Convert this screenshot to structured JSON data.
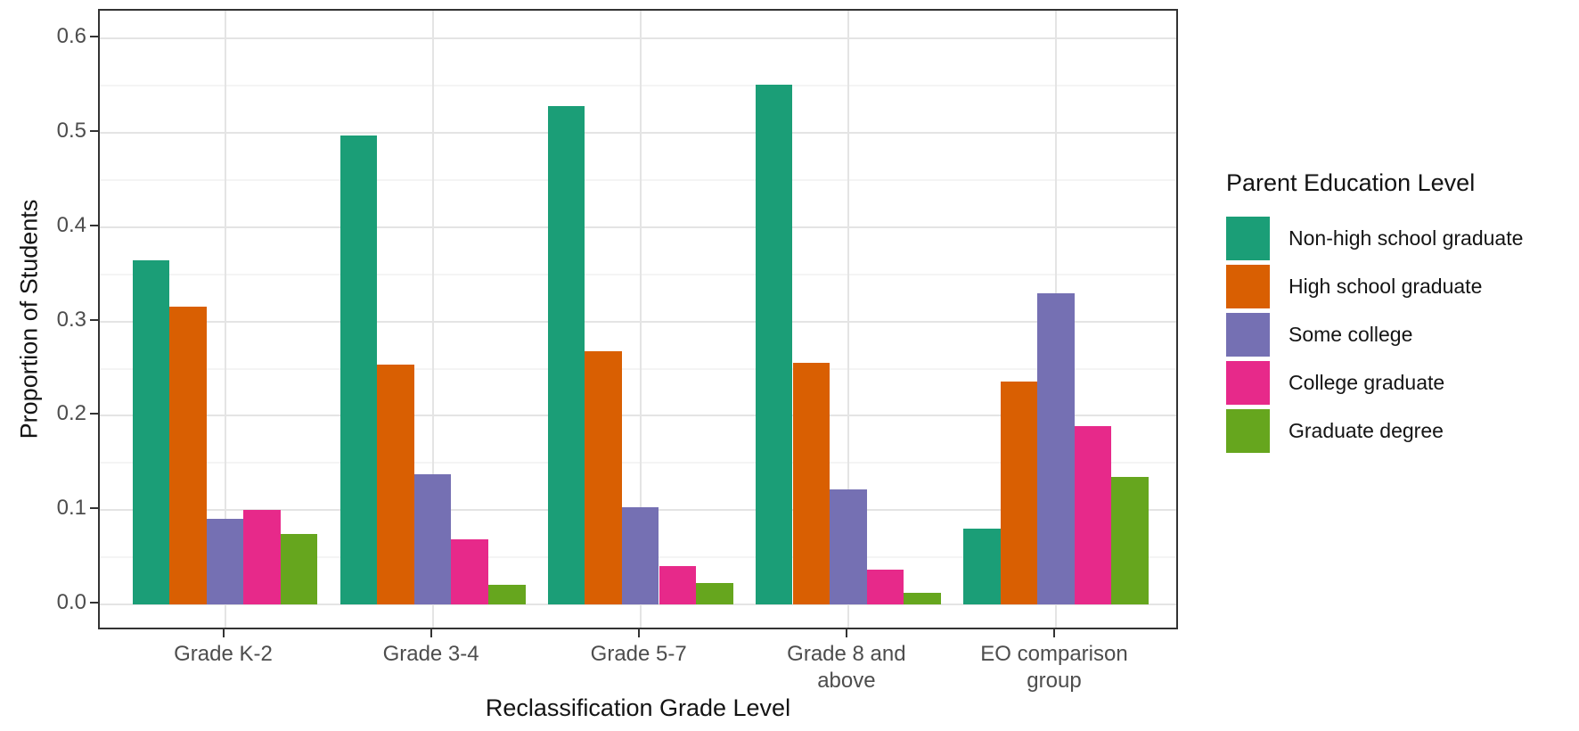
{
  "chart_data": {
    "type": "bar",
    "title": "",
    "xlabel": "Reclassification Grade Level",
    "ylabel": "Proportion of Students",
    "categories": [
      "Grade K-2",
      "Grade 3-4",
      "Grade 5-7",
      "Grade 8 and above",
      "EO comparison group"
    ],
    "x_tick_label_lines": [
      [
        "Grade K-2"
      ],
      [
        "Grade 3-4"
      ],
      [
        "Grade 5-7"
      ],
      [
        "Grade 8 and",
        "above"
      ],
      [
        "EO comparison",
        "group"
      ]
    ],
    "series": [
      {
        "name": "Non-high school graduate",
        "color": "#1B9E77",
        "values": [
          0.365,
          0.497,
          0.528,
          0.551,
          0.08
        ]
      },
      {
        "name": "High school graduate",
        "color": "#D95F02",
        "values": [
          0.316,
          0.254,
          0.268,
          0.256,
          0.236
        ]
      },
      {
        "name": "Some college",
        "color": "#7570B3",
        "values": [
          0.091,
          0.138,
          0.103,
          0.122,
          0.33
        ]
      },
      {
        "name": "College graduate",
        "color": "#E7298A",
        "values": [
          0.1,
          0.069,
          0.041,
          0.037,
          0.189
        ]
      },
      {
        "name": "Graduate degree",
        "color": "#66A61E",
        "values": [
          0.075,
          0.021,
          0.023,
          0.012,
          0.135
        ]
      }
    ],
    "y_ticks": [
      "0.0",
      "0.1",
      "0.2",
      "0.3",
      "0.4",
      "0.5",
      "0.6"
    ],
    "y_tick_values": [
      0.0,
      0.1,
      0.2,
      0.3,
      0.4,
      0.5,
      0.6
    ],
    "y_minor_tick_values": [
      0.05,
      0.15,
      0.25,
      0.35,
      0.45,
      0.55
    ],
    "ylim": [
      0,
      0.63
    ],
    "grid": true,
    "legend": {
      "title": "Parent Education Level",
      "position": "right"
    },
    "style_colors": {
      "panel_border": "#333333",
      "grid_major": "#e4e4e4",
      "grid_minor": "#f4f4f4",
      "tick_text": "#4d4d4d",
      "axis_title_text": "#141414"
    }
  }
}
